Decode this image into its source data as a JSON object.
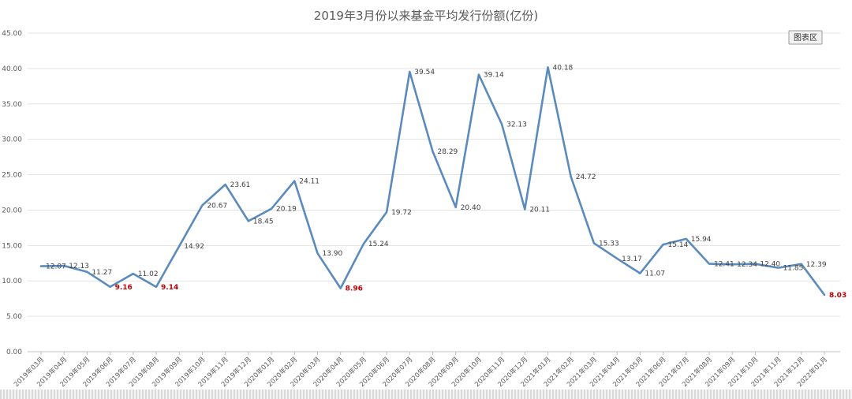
{
  "chart_data": {
    "type": "line",
    "title": "2019年3月份以来基金平均发行份额(亿份)",
    "xlabel": "",
    "ylabel": "",
    "ylim": [
      0,
      45
    ],
    "yticks": [
      "0.00",
      "5.00",
      "10.00",
      "15.00",
      "20.00",
      "25.00",
      "30.00",
      "35.00",
      "40.00",
      "45.00"
    ],
    "grid": true,
    "legend": {
      "label": "图表区",
      "placement": "top-right"
    },
    "line_color": "#5b8bbd",
    "min_label_color": "#c00000",
    "categories": [
      "2019年03月",
      "2019年04月",
      "2019年05月",
      "2019年06月",
      "2019年07月",
      "2019年08月",
      "2019年09月",
      "2019年10月",
      "2019年11月",
      "2019年12月",
      "2020年01月",
      "2020年02月",
      "2020年03月",
      "2020年04月",
      "2020年05月",
      "2020年06月",
      "2020年07月",
      "2020年08月",
      "2020年09月",
      "2020年10月",
      "2020年11月",
      "2020年12月",
      "2021年01月",
      "2021年02月",
      "2021年03月",
      "2021年04月",
      "2021年05月",
      "2021年06月",
      "2021年07月",
      "2021年08月",
      "2021年09月",
      "2021年10月",
      "2021年11月",
      "2021年12月",
      "2022年01月"
    ],
    "values": [
      12.07,
      12.13,
      11.27,
      9.16,
      11.02,
      9.14,
      14.92,
      20.67,
      23.61,
      18.45,
      20.19,
      24.11,
      13.9,
      8.96,
      15.24,
      19.72,
      39.54,
      28.29,
      20.4,
      39.14,
      32.13,
      20.11,
      40.18,
      24.72,
      15.33,
      13.17,
      11.07,
      15.14,
      15.94,
      12.41,
      12.34,
      12.4,
      11.85,
      12.39,
      8.03
    ],
    "data_labels": [
      "12.07",
      "12.13",
      "11.27",
      "9.16",
      "11.02",
      "9.14",
      "14.92",
      "20.67",
      "23.61",
      "18.45",
      "20.19",
      "24.11",
      "13.90",
      "8.96",
      "15.24",
      "19.72",
      "39.54",
      "28.29",
      "20.40",
      "39.14",
      "32.13",
      "20.11",
      "40.18",
      "24.72",
      "15.33",
      "13.17",
      "11.07",
      "15.14",
      "15.94",
      "12.41",
      "12.34",
      "12.40",
      "11.85",
      "12.39",
      "8.03"
    ],
    "highlighted_labels": [
      3,
      5,
      13,
      34
    ]
  }
}
